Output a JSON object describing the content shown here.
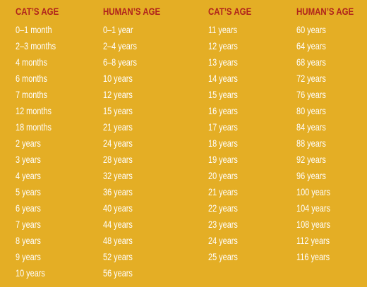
{
  "table": {
    "headers": [
      "CAT’S AGE",
      "HUMAN’S AGE",
      "CAT’S AGE",
      "HUMAN’S AGE"
    ],
    "columns": [
      [
        "0–1 month",
        "2–3 months",
        "4 months",
        "6 months",
        "7 months",
        "12 months",
        "18 months",
        "2 years",
        "3 years",
        "4 years",
        "5 years",
        "6 years",
        "7 years",
        "8 years",
        "9 years",
        "10 years"
      ],
      [
        "0–1 year",
        "2–4 years",
        "6–8 years",
        "10 years",
        "12 years",
        "15 years",
        "21 years",
        "24 years",
        "28 years",
        "32 years",
        "36 years",
        "40 years",
        "44 years",
        "48 years",
        "52 years",
        "56 years"
      ],
      [
        "11 years",
        "12 years",
        "13 years",
        "14 years",
        "15 years",
        "16 years",
        "17 years",
        "18 years",
        "19 years",
        "20 years",
        "21 years",
        "22 years",
        "23 years",
        "24 years",
        "25 years"
      ],
      [
        "60 years",
        "64 years",
        "68 years",
        "72 years",
        "76 years",
        "80 years",
        "84 years",
        "88 years",
        "92 years",
        "96 years",
        "100 years",
        "104 years",
        "108 years",
        "112 years",
        "116 years"
      ]
    ]
  },
  "colors": {
    "background": "#E4AE25",
    "header": "#B0231C",
    "cell_text": "#FFFFFF"
  }
}
